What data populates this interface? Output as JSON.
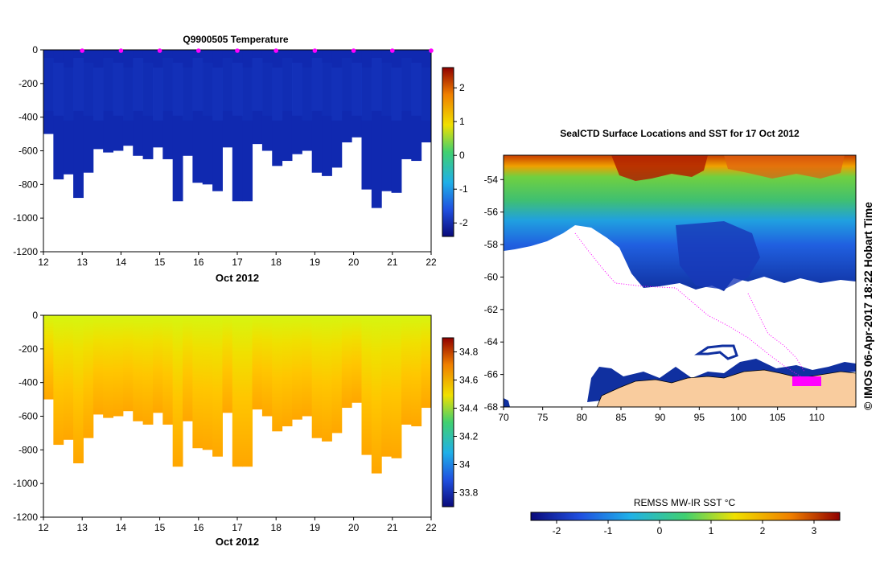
{
  "chart_data": [
    {
      "type": "heatmap",
      "name": "temperature-section",
      "title": "Q9900505  Temperature",
      "xlabel": "Oct 2012",
      "xlim": [
        12,
        22
      ],
      "ylim": [
        -1200,
        0
      ],
      "xticks": [
        "12",
        "13",
        "14",
        "15",
        "16",
        "17",
        "18",
        "19",
        "20",
        "21",
        "22"
      ],
      "yticks": [
        "0",
        "-200",
        "-400",
        "-600",
        "-800",
        "-1000",
        "-1200"
      ],
      "profile_times": [
        13,
        14,
        15,
        16,
        17,
        18,
        19,
        20,
        21,
        22
      ],
      "profile_marker_color": "#ff00ff",
      "profile_bottom_depths": [
        500,
        770,
        740,
        880,
        730,
        590,
        610,
        600,
        570,
        630,
        650,
        580,
        650,
        900,
        630,
        790,
        800,
        840,
        580,
        900,
        900,
        560,
        600,
        690,
        660,
        620,
        600,
        730,
        750,
        700,
        550,
        520,
        830,
        940,
        840,
        850,
        650,
        660,
        550
      ],
      "colorbar": {
        "ticks": [
          "2",
          "1",
          "0",
          "-1",
          "-2"
        ],
        "range": [
          -2.4,
          2.6
        ],
        "colors": [
          "#0a0a7a",
          "#2050e0",
          "#20b0e8",
          "#40d070",
          "#f0e000",
          "#f08000",
          "#900000"
        ]
      },
      "field_color": "#1029b0"
    },
    {
      "type": "heatmap",
      "name": "salinity-section",
      "title": "",
      "xlabel": "Oct 2012",
      "xlim": [
        12,
        22
      ],
      "ylim": [
        -1200,
        0
      ],
      "xticks": [
        "12",
        "13",
        "14",
        "15",
        "16",
        "17",
        "18",
        "19",
        "20",
        "21",
        "22"
      ],
      "yticks": [
        "0",
        "-200",
        "-400",
        "-600",
        "-800",
        "-1000",
        "-1200"
      ],
      "colorbar": {
        "ticks": [
          "34.8",
          "34.6",
          "34.4",
          "34.2",
          "34",
          "33.8"
        ],
        "range": [
          33.7,
          34.9
        ],
        "colors": [
          "#0a0a7a",
          "#2050e0",
          "#20b0e8",
          "#40d070",
          "#f0e000",
          "#f08000",
          "#900000"
        ]
      },
      "field_colors": {
        "surface": "#d6f510",
        "upper": "#f0e000",
        "middle": "#ffc600",
        "deep": "#ffa600"
      }
    },
    {
      "type": "heatmap",
      "name": "sst-map",
      "title": "SealCTD Surface Locations and SST for 17 Oct 2012",
      "xlim": [
        70,
        115
      ],
      "ylim": [
        -68,
        -52.5
      ],
      "xticks": [
        "70",
        "75",
        "80",
        "85",
        "90",
        "95",
        "100",
        "105",
        "110"
      ],
      "yticks": [
        "-54",
        "-56",
        "-58",
        "-60",
        "-62",
        "-64",
        "-66",
        "-68"
      ],
      "colorbar": {
        "label": "REMSS MW-IR SST °C",
        "ticks": [
          "-2",
          "-1",
          "0",
          "1",
          "2",
          "3"
        ],
        "range": [
          -2.5,
          3.5
        ],
        "colors": [
          "#0a0a7a",
          "#2050e0",
          "#20b0e8",
          "#40d070",
          "#f0e000",
          "#f08000",
          "#900000"
        ]
      },
      "land_color": "#f9cc9e",
      "track_color": "#ff00ff"
    }
  ],
  "footer": {
    "stamp": "© IMOS 06-Apr-2017 18:22 Hobart Time"
  }
}
